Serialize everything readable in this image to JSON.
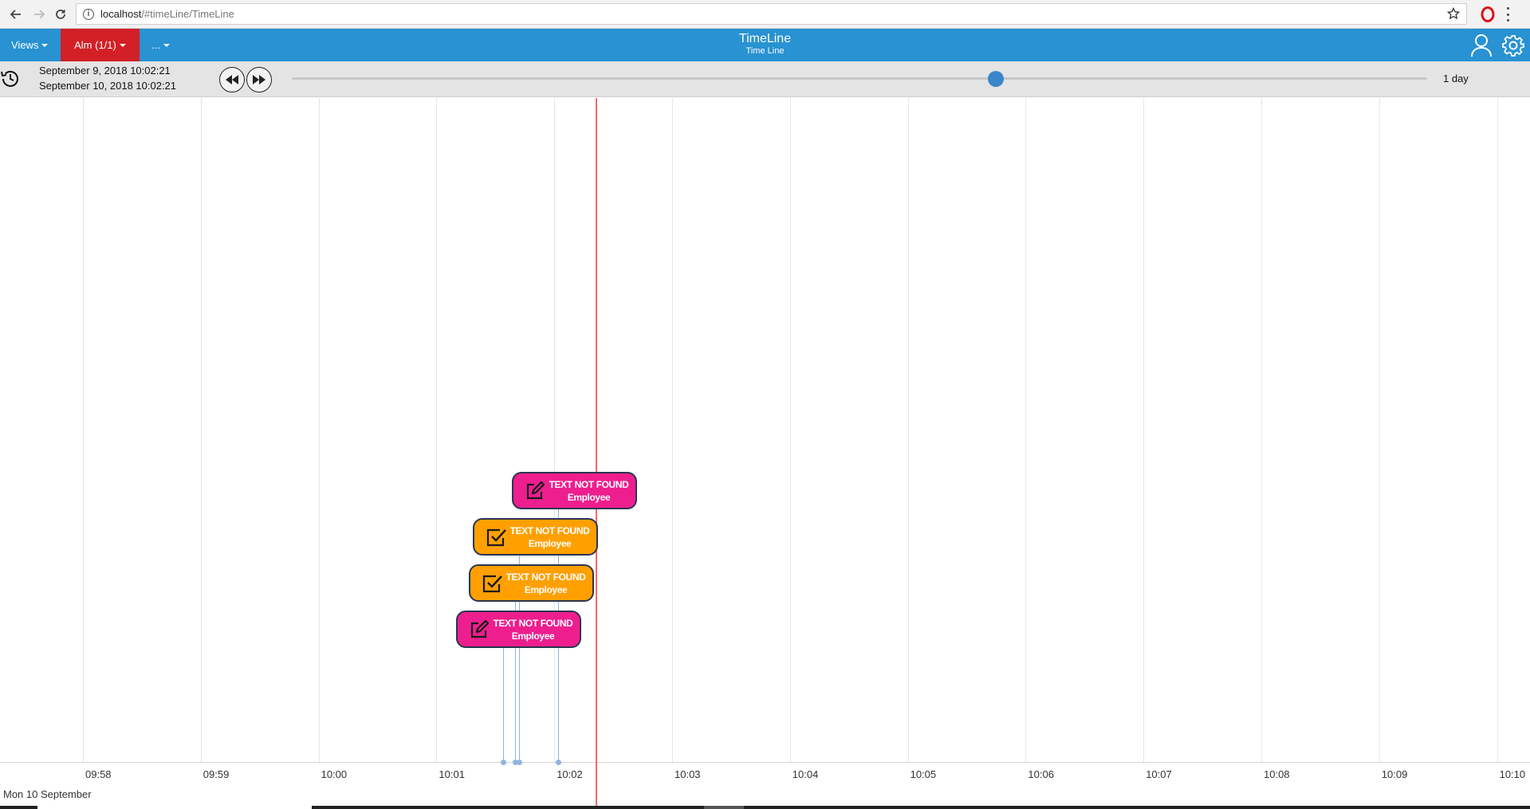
{
  "browser": {
    "url_host": "localhost",
    "url_path": "/#timeLine/TimeLine",
    "icons": [
      "back-icon",
      "forward-icon",
      "reload-icon",
      "info-icon",
      "star-icon",
      "opera-icon",
      "kebab-menu-icon"
    ]
  },
  "header": {
    "menu": {
      "views": "Views",
      "alm": "Alm (1/1)",
      "more": "..."
    },
    "title": "TimeLine",
    "subtitle": "Time Line",
    "colors": {
      "bar": "#2892d2",
      "alm": "#d32027"
    }
  },
  "controls": {
    "from": "September 9, 2018 10:02:21",
    "to": "September 10, 2018 10:02:21",
    "range_label": "1 day",
    "slider_value": 0.62
  },
  "timeline": {
    "ticks": [
      "09:58",
      "09:59",
      "10:00",
      "10:01",
      "10:02",
      "10:03",
      "10:04",
      "10:05",
      "10:06",
      "10:07",
      "10:08",
      "10:09",
      "10:10"
    ],
    "date_label": "Mon 10 September",
    "now_time": "10:02:21",
    "events": [
      {
        "kind": "edit",
        "color": "#ee1e8e",
        "line1": "TEXT NOT FOUND",
        "line2": "Employee",
        "time": "10:02:02"
      },
      {
        "kind": "check",
        "color": "#ffa000",
        "line1": "TEXT NOT FOUND",
        "line2": "Employee",
        "time": "10:01:42"
      },
      {
        "kind": "check",
        "color": "#ffa000",
        "line1": "TEXT NOT FOUND",
        "line2": "Employee",
        "time": "10:01:40"
      },
      {
        "kind": "edit",
        "color": "#ee1e8e",
        "line1": "TEXT NOT FOUND",
        "line2": "Employee",
        "time": "10:01:34"
      }
    ]
  }
}
